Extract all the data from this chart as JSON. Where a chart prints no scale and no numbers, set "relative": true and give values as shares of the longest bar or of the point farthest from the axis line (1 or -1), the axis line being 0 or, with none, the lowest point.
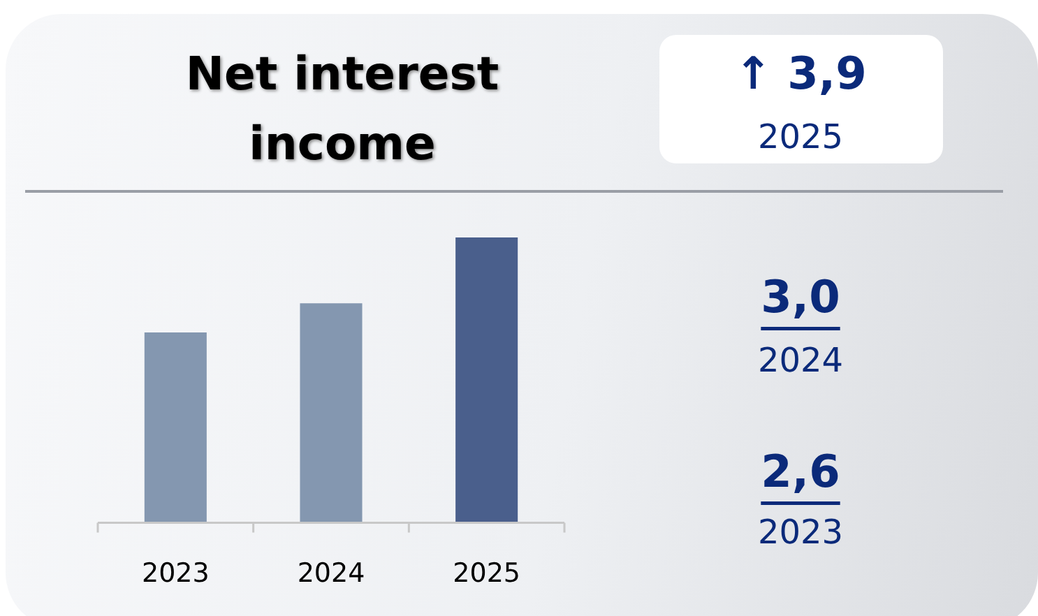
{
  "chart_data": {
    "type": "bar",
    "title": "Net interest income",
    "categories": [
      "2023",
      "2024",
      "2025"
    ],
    "values": [
      0.667,
      0.769,
      1
    ],
    "relative": true,
    "colors": [
      "#8497b0",
      "#8497b0",
      "#4a5f8c"
    ],
    "annotations": [
      "↑ 3,9",
      "2025",
      "3,0",
      "2024",
      "2,6",
      "2023"
    ]
  }
}
